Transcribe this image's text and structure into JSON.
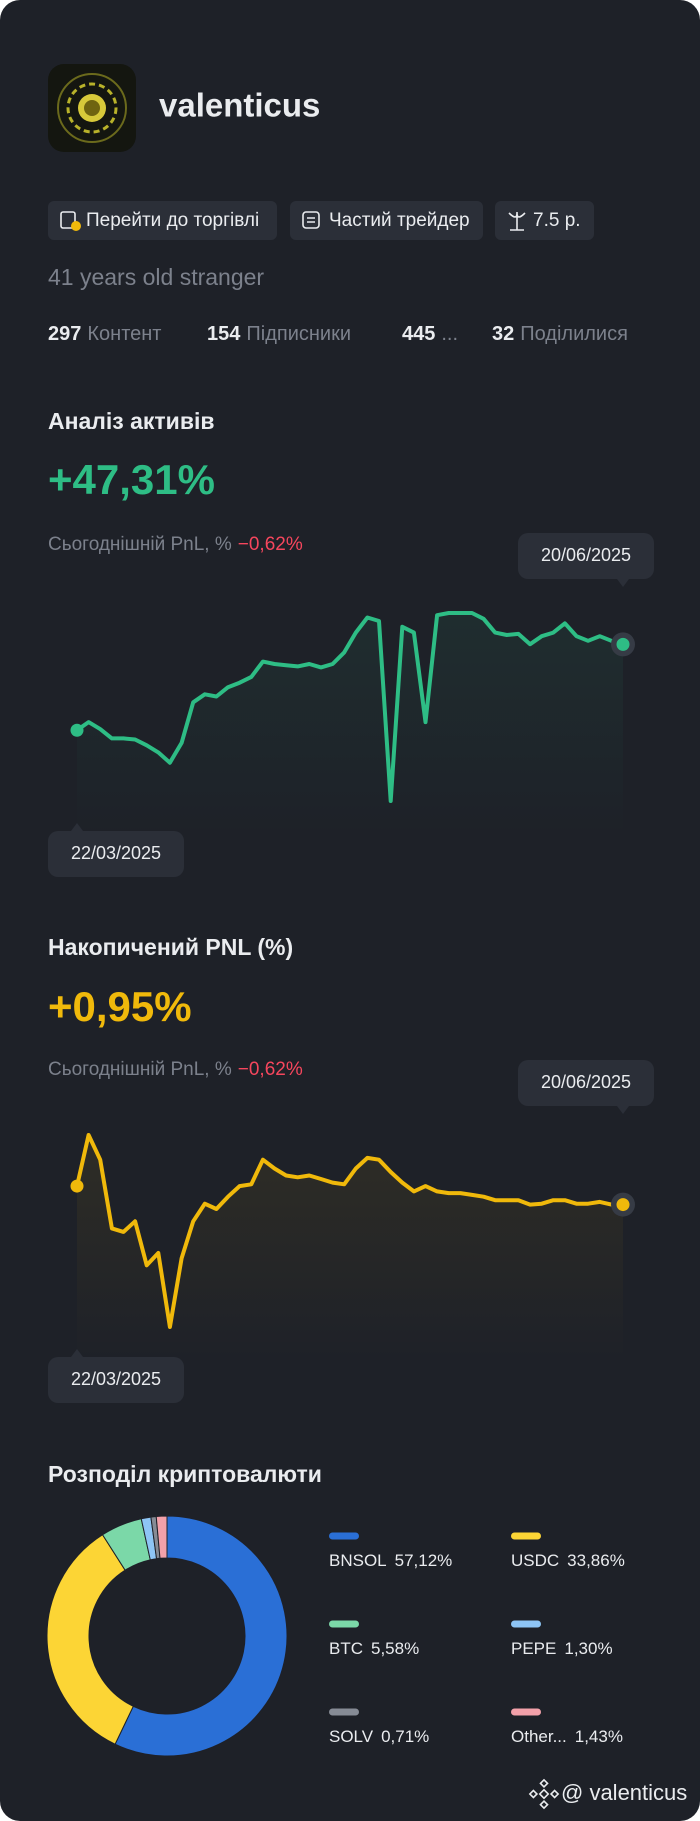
{
  "profile": {
    "username": "valenticus",
    "tags": [
      "Перейти до торгівлі",
      "Частий трейдер",
      "7.5 р."
    ],
    "bio": "41 years old stranger",
    "stats": [
      {
        "count": 297,
        "label": "Контент"
      },
      {
        "count": 154,
        "label": "Підписники"
      },
      {
        "count": 445,
        "label": "..."
      },
      {
        "count": 32,
        "label": "Поділилися"
      }
    ]
  },
  "chart_data": [
    {
      "type": "line",
      "title": "Аналіз активів",
      "headline": "+47,31%",
      "subtitle": "Сьогоднішній PnL, %",
      "today_pnl": "−0,62%",
      "date_range": [
        "22/03/2025",
        "20/06/2025"
      ],
      "color": "#2ebd85",
      "grid": true,
      "values": [
        0,
        4.5,
        0.6,
        -4.5,
        -4.5,
        -5.1,
        -8.3,
        -12.2,
        -17.9,
        -7,
        15.4,
        19.8,
        18.6,
        23.7,
        26.2,
        29.4,
        37.8,
        36.5,
        35.8,
        35.2,
        36.5,
        34.6,
        36.5,
        42.9,
        53.8,
        62.1,
        60.2,
        -39,
        57,
        53.8,
        4.5,
        63.4,
        64.6,
        64.6,
        64.6,
        61.4,
        53.8,
        52.5,
        53.1,
        47.4,
        51.8,
        53.8,
        58.9,
        51.8,
        49.3,
        51.8,
        49.3,
        47.31
      ]
    },
    {
      "type": "line",
      "title": "Накопичений PNL (%)",
      "headline": "+0,95%",
      "subtitle": "Сьогоднішній PnL, %",
      "today_pnl": "−0,62%",
      "date_range": [
        "22/03/2025",
        "20/06/2025"
      ],
      "color": "#f0b90b",
      "grid": true,
      "values": [
        2.0,
        4.9,
        3.5,
        -0.4,
        -0.6,
        0.0,
        -2.5,
        -1.8,
        -6.0,
        -2.1,
        0.0,
        1.0,
        0.7,
        1.4,
        2.0,
        2.1,
        3.5,
        3.0,
        2.6,
        2.5,
        2.6,
        2.4,
        2.2,
        2.1,
        3.0,
        3.6,
        3.5,
        2.8,
        2.2,
        1.7,
        2.0,
        1.7,
        1.6,
        1.6,
        1.5,
        1.4,
        1.2,
        1.2,
        1.2,
        0.95,
        1.0,
        1.2,
        1.2,
        1.0,
        1.0,
        1.1,
        0.95,
        0.95
      ]
    },
    {
      "type": "donut",
      "title": "Розподіл криптовалюти",
      "categories": [
        "BNSOL",
        "USDC",
        "BTC",
        "PEPE",
        "SOLV",
        "Other..."
      ],
      "values": [
        57.12,
        33.86,
        5.58,
        1.3,
        0.71,
        1.43
      ],
      "value_labels": [
        "57,12%",
        "33,86%",
        "5,58%",
        "1,30%",
        "0,71%",
        "1,43%"
      ],
      "colors": [
        "#2a6fd6",
        "#fcd535",
        "#7bd8a8",
        "#8ec5f5",
        "#868b95",
        "#f3a1aa"
      ]
    }
  ],
  "footer": "@ valenticus"
}
